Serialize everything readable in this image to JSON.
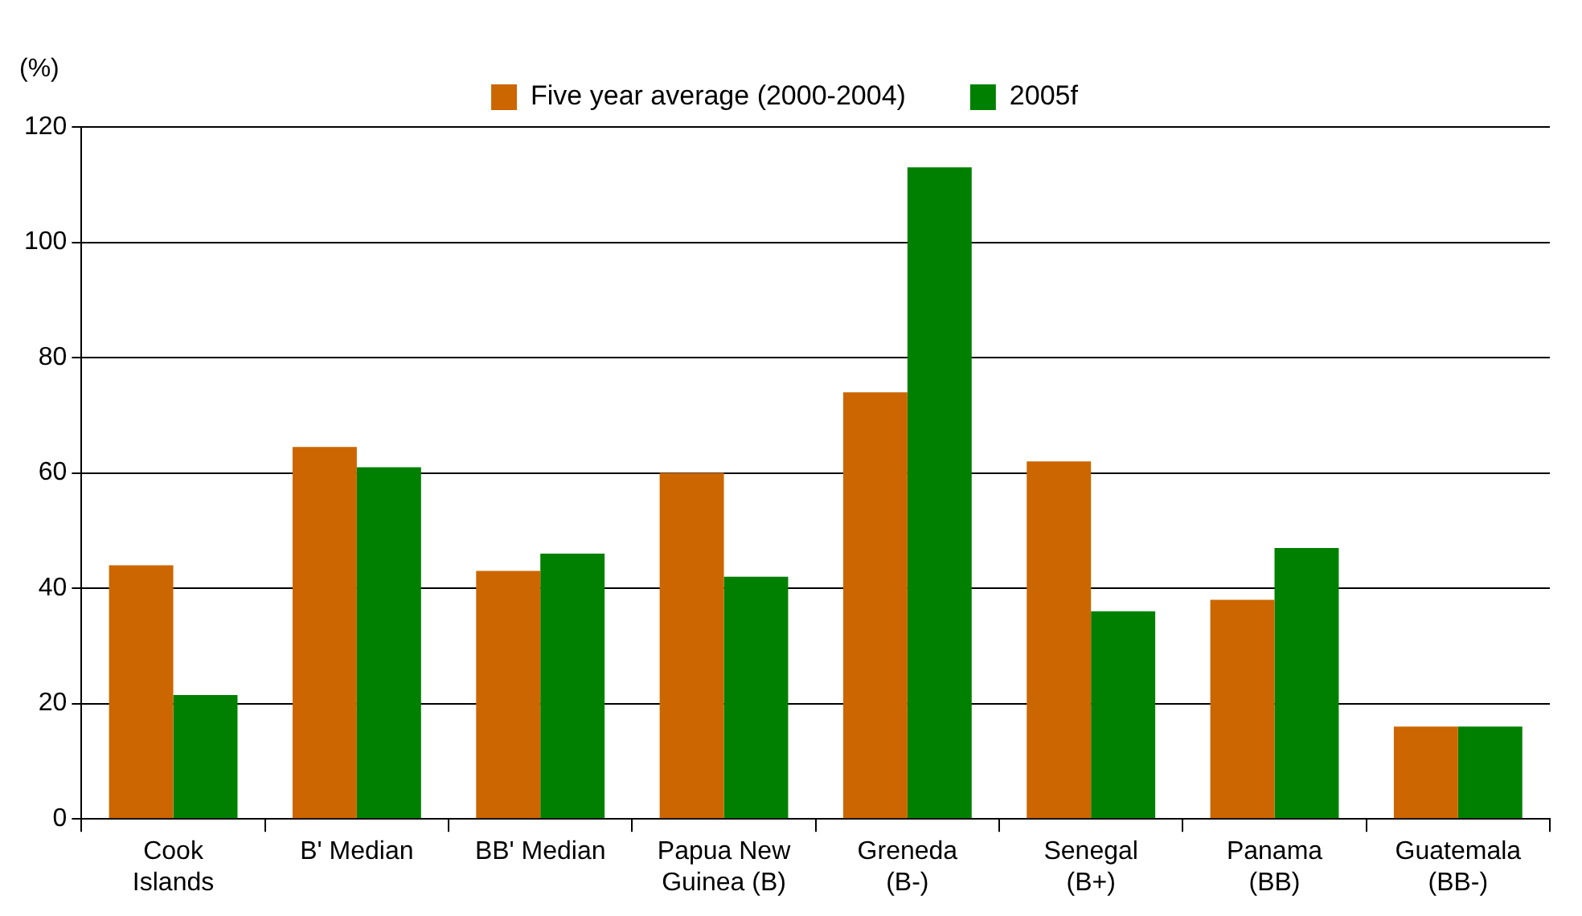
{
  "chart_data": {
    "type": "bar",
    "ylabel": "(%)",
    "categories": [
      "Cook Islands",
      "B' Median",
      "BB' Median",
      "Papua New Guinea (B)",
      "Greneda (B-)",
      "Senegal (B+)",
      "Panama (BB)",
      "Guatemala (BB-)"
    ],
    "series": [
      {
        "name": "Five year average (2000-2004)",
        "color": "#cc6600",
        "values": [
          44,
          64.5,
          43,
          60,
          74,
          62,
          38,
          16
        ]
      },
      {
        "name": "2005f",
        "color": "#008000",
        "values": [
          21.5,
          61,
          46,
          42,
          113,
          36,
          47,
          16
        ]
      }
    ],
    "ylim": [
      0,
      120
    ],
    "yticks": [
      0,
      20,
      40,
      60,
      80,
      100,
      120
    ],
    "grid": "y",
    "legend": "top"
  }
}
